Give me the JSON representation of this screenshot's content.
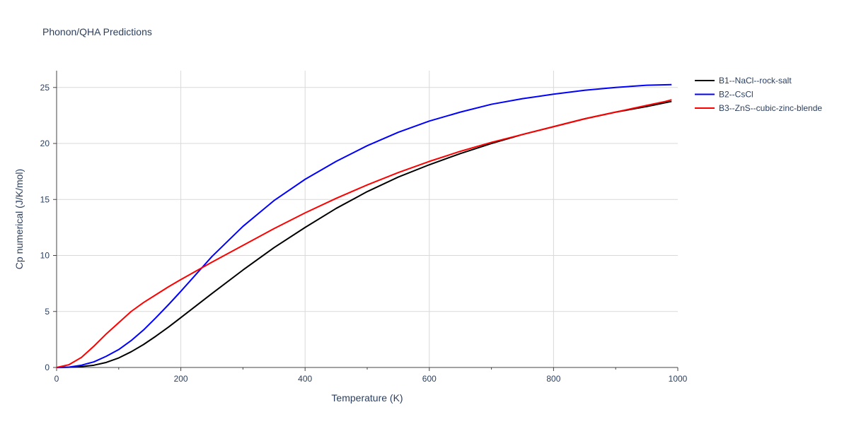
{
  "chart_data": {
    "type": "line",
    "title": "Phonon/QHA Predictions",
    "xlabel": "Temperature (K)",
    "ylabel": "Cp numerical (J/K/mol)",
    "xlim": [
      0,
      1000
    ],
    "ylim": [
      0,
      26.5
    ],
    "xticks": [
      0,
      200,
      400,
      600,
      800,
      1000
    ],
    "yticks": [
      0,
      5,
      10,
      15,
      20,
      25
    ],
    "grid": true,
    "legend_position": "top-right",
    "series": [
      {
        "name": "B1--NaCl--rock-salt",
        "color": "#000000",
        "x": [
          0,
          20,
          40,
          60,
          80,
          100,
          120,
          140,
          160,
          180,
          200,
          250,
          300,
          350,
          400,
          450,
          500,
          550,
          600,
          650,
          700,
          750,
          800,
          850,
          900,
          950,
          990
        ],
        "y": [
          0,
          0.02,
          0.08,
          0.2,
          0.45,
          0.85,
          1.4,
          2.05,
          2.8,
          3.6,
          4.45,
          6.6,
          8.7,
          10.7,
          12.5,
          14.2,
          15.7,
          17.0,
          18.1,
          19.1,
          20.0,
          20.8,
          21.5,
          22.2,
          22.8,
          23.3,
          23.75
        ]
      },
      {
        "name": "B2--CsCl",
        "color": "#0000ff",
        "x": [
          0,
          20,
          40,
          60,
          80,
          100,
          120,
          140,
          160,
          180,
          200,
          250,
          300,
          350,
          400,
          450,
          500,
          550,
          600,
          650,
          700,
          750,
          800,
          850,
          900,
          950,
          990
        ],
        "y": [
          0,
          0.03,
          0.2,
          0.5,
          1.0,
          1.6,
          2.4,
          3.35,
          4.45,
          5.6,
          6.8,
          9.9,
          12.6,
          14.9,
          16.8,
          18.4,
          19.8,
          21.0,
          22.0,
          22.8,
          23.5,
          24.0,
          24.4,
          24.75,
          25.0,
          25.2,
          25.25
        ]
      },
      {
        "name": "B3--ZnS--cubic-zinc-blende",
        "color": "#ff0000",
        "x": [
          0,
          20,
          40,
          60,
          80,
          100,
          120,
          140,
          160,
          180,
          200,
          250,
          300,
          350,
          400,
          450,
          500,
          550,
          600,
          650,
          700,
          750,
          800,
          850,
          900,
          950,
          980,
          990
        ],
        "y": [
          0,
          0.25,
          0.9,
          1.9,
          3.0,
          4.0,
          5.0,
          5.8,
          6.5,
          7.2,
          7.85,
          9.4,
          10.9,
          12.4,
          13.8,
          15.1,
          16.3,
          17.4,
          18.4,
          19.3,
          20.1,
          20.8,
          21.5,
          22.2,
          22.8,
          23.4,
          23.75,
          23.9
        ]
      }
    ]
  }
}
